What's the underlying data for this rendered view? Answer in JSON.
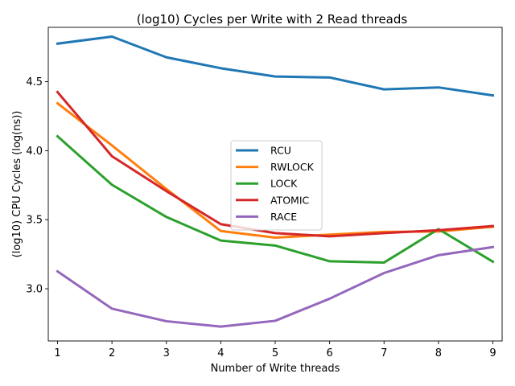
{
  "chart_data": {
    "type": "line",
    "title": "(log10) Cycles per Write with 2 Read threads",
    "xlabel": "Number of Write threads",
    "ylabel": "(log10) CPU Cycles (log(ns))",
    "x": [
      1,
      2,
      3,
      4,
      5,
      6,
      7,
      8,
      9
    ],
    "xlim": [
      0.83,
      9.17
    ],
    "ylim": [
      2.622,
      4.893
    ],
    "yticks": [
      3.0,
      3.5,
      4.0,
      4.5
    ],
    "ytick_labels": [
      "3.0",
      "3.5",
      "4.0",
      "4.5"
    ],
    "xtick_labels": [
      "1",
      "2",
      "3",
      "4",
      "5",
      "6",
      "7",
      "8",
      "9"
    ],
    "grid": false,
    "legend_position": "center",
    "series": [
      {
        "name": "RCU",
        "color": "#1f77b4",
        "values": [
          4.775,
          4.826,
          4.676,
          4.597,
          4.537,
          4.53,
          4.444,
          4.458,
          4.4
        ]
      },
      {
        "name": "RWLOCK",
        "color": "#ff7f0e",
        "values": [
          4.343,
          4.038,
          3.722,
          3.418,
          3.37,
          3.392,
          3.412,
          3.415,
          3.449
        ]
      },
      {
        "name": "LOCK",
        "color": "#2ca02c",
        "values": [
          4.104,
          3.753,
          3.52,
          3.349,
          3.313,
          3.199,
          3.19,
          3.432,
          3.196
        ]
      },
      {
        "name": "ATOMIC",
        "color": "#d62728",
        "values": [
          4.424,
          3.96,
          3.707,
          3.468,
          3.403,
          3.38,
          3.403,
          3.424,
          3.454
        ]
      },
      {
        "name": "RACE",
        "color": "#9467bd",
        "values": [
          3.126,
          2.856,
          2.765,
          2.726,
          2.768,
          2.928,
          3.114,
          3.243,
          3.302
        ]
      }
    ]
  }
}
